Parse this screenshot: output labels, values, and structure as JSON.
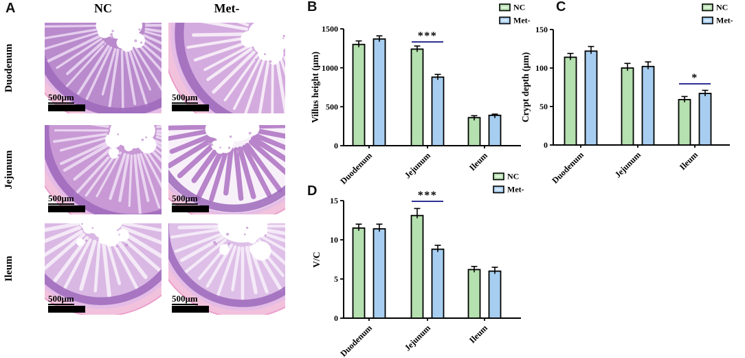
{
  "panels": {
    "a": {
      "label": "A",
      "col_headers": [
        "NC",
        "Met-"
      ],
      "row_labels": [
        "Duodenum",
        "Jejunum",
        "Ileum"
      ],
      "scale_label": "500μm",
      "images": [
        {
          "name": "duodenum-nc",
          "row": "Duodenum",
          "group": "NC"
        },
        {
          "name": "duodenum-met",
          "row": "Duodenum",
          "group": "Met-"
        },
        {
          "name": "jejunum-nc",
          "row": "Jejunum",
          "group": "NC"
        },
        {
          "name": "jejunum-met",
          "row": "Jejunum",
          "group": "Met-"
        },
        {
          "name": "ileum-nc",
          "row": "Ileum",
          "group": "NC"
        },
        {
          "name": "ileum-met",
          "row": "Ileum",
          "group": "Met-"
        }
      ]
    },
    "b": {
      "label": "B"
    },
    "c": {
      "label": "C"
    },
    "d": {
      "label": "D"
    }
  },
  "colors": {
    "nc_fill": "#b5e0af",
    "met_fill": "#a7cef0",
    "nc_highlight": "#ddf2d8",
    "met_highlight": "#d4e8fa",
    "bar_outline": "#000000",
    "sig_line": "#2e3192",
    "histology_pink_rim": "#f2c2dc",
    "histology_purple": "#b57fc8"
  },
  "chart_data": [
    {
      "id": "b",
      "type": "bar",
      "title": "",
      "ylabel": "Villus height (μm)",
      "xlabel": "",
      "categories": [
        "Duodenum",
        "Jejunum",
        "Ileum"
      ],
      "series": [
        {
          "name": "NC",
          "values": [
            1300,
            1240,
            360
          ],
          "errors": [
            45,
            40,
            25
          ]
        },
        {
          "name": "Met-",
          "values": [
            1370,
            880,
            390
          ],
          "errors": [
            40,
            35,
            15
          ]
        }
      ],
      "ylim": [
        0,
        1500
      ],
      "yticks": [
        0,
        500,
        1000,
        1500
      ],
      "grid": false,
      "legend": [
        "NC",
        "Met-"
      ],
      "legend_position": "top-right",
      "significance": [
        {
          "category": "Jejunum",
          "label": "***"
        }
      ]
    },
    {
      "id": "c",
      "type": "bar",
      "title": "",
      "ylabel": "Crypt depth (μm)",
      "xlabel": "",
      "categories": [
        "Duodenum",
        "Jejunum",
        "Ileum"
      ],
      "series": [
        {
          "name": "NC",
          "values": [
            114,
            100,
            59
          ],
          "errors": [
            5,
            6,
            4
          ]
        },
        {
          "name": "Met-",
          "values": [
            122,
            102,
            67
          ],
          "errors": [
            6,
            6,
            4
          ]
        }
      ],
      "ylim": [
        0,
        150
      ],
      "yticks": [
        0,
        50,
        100,
        150
      ],
      "grid": false,
      "legend": [
        "NC",
        "Met-"
      ],
      "legend_position": "top-right",
      "significance": [
        {
          "category": "Ileum",
          "label": "*"
        }
      ]
    },
    {
      "id": "d",
      "type": "bar",
      "title": "",
      "ylabel": "V/C",
      "xlabel": "",
      "categories": [
        "Duodenum",
        "Jejunum",
        "Ileum"
      ],
      "series": [
        {
          "name": "NC",
          "values": [
            11.5,
            13.1,
            6.2
          ],
          "errors": [
            0.5,
            0.9,
            0.4
          ]
        },
        {
          "name": "Met-",
          "values": [
            11.4,
            8.8,
            6.0
          ],
          "errors": [
            0.6,
            0.5,
            0.5
          ]
        }
      ],
      "ylim": [
        0,
        15
      ],
      "yticks": [
        0,
        5,
        10,
        15
      ],
      "grid": false,
      "legend": [
        "NC",
        "Met-"
      ],
      "legend_position": "top-right",
      "significance": [
        {
          "category": "Jejunum",
          "label": "***"
        }
      ]
    }
  ]
}
